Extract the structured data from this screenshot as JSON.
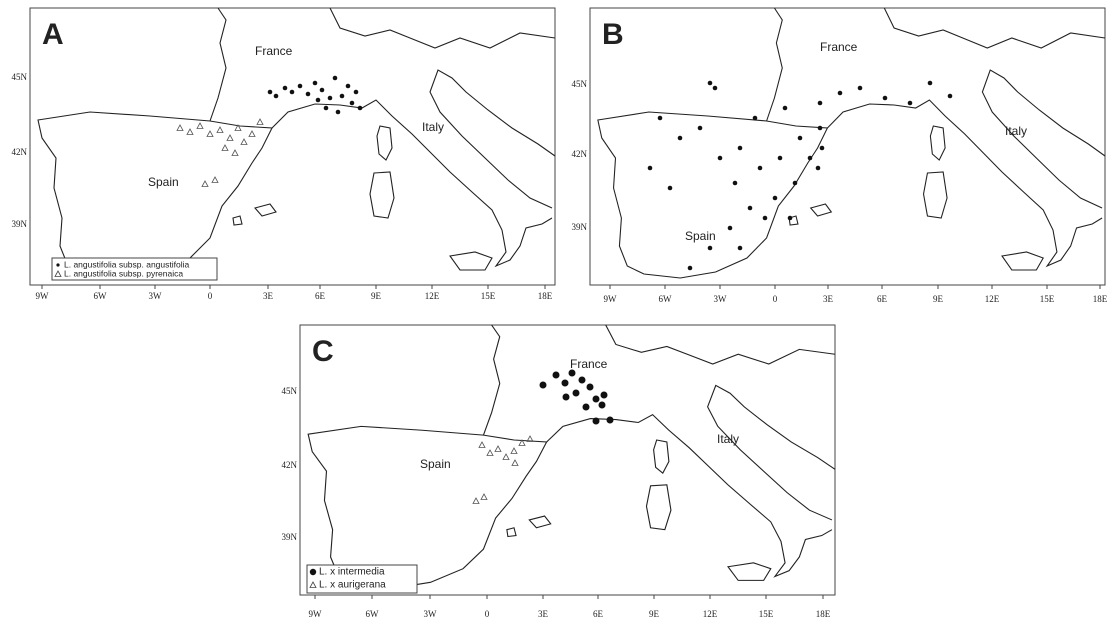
{
  "panels": [
    {
      "label": "A",
      "countries": [
        "France",
        "Spain",
        "Italy"
      ],
      "lat_labels": [
        "45N",
        "42N",
        "39N"
      ],
      "lon_labels": [
        "9W",
        "6W",
        "3W",
        "0",
        "3E",
        "6E",
        "9E",
        "12E",
        "15E",
        "18E"
      ],
      "legend": [
        "L. angustifolia subsp. angustifolia",
        "L. angustifolia subsp. pyrenaica"
      ]
    },
    {
      "label": "B",
      "countries": [
        "France",
        "Spain",
        "Italy"
      ],
      "lat_labels": [
        "45N",
        "42N",
        "39N"
      ],
      "lon_labels": [
        "9W",
        "6W",
        "3W",
        "0",
        "3E",
        "6E",
        "9E",
        "12E",
        "15E",
        "18E"
      ]
    },
    {
      "label": "C",
      "countries": [
        "France",
        "Spain",
        "Italy"
      ],
      "lat_labels": [
        "45N",
        "42N",
        "39N"
      ],
      "lon_labels": [
        "9W",
        "6W",
        "3W",
        "0",
        "3E",
        "6E",
        "9E",
        "12E",
        "15E",
        "18E"
      ],
      "legend": [
        "L. x intermedia",
        "L. x aurigerana"
      ]
    }
  ]
}
